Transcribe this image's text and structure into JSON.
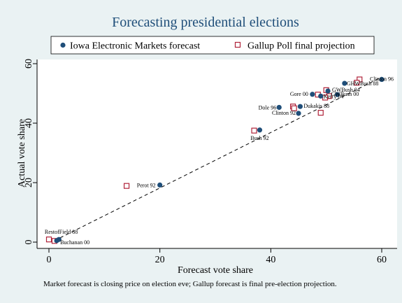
{
  "chart_data": {
    "type": "scatter",
    "title": "Forecasting presidential elections",
    "xlabel": "Forecast vote share",
    "ylabel": "Actual vote share",
    "xlim": [
      0,
      60
    ],
    "ylim": [
      0,
      60
    ],
    "xticks": [
      0,
      20,
      40,
      60
    ],
    "yticks": [
      0,
      20,
      40,
      60
    ],
    "legend_position": "top",
    "note": "Market forecast is closing price on election eve; Gallup forecast is final pre-election projection.",
    "fit_line": {
      "style": "dashed",
      "from": [
        1,
        0.5
      ],
      "to": [
        60,
        55.5
      ]
    },
    "series": [
      {
        "name": "Iowa Electronic Markets forecast",
        "marker": "filled-circle",
        "color": "#1f4e79",
        "points": [
          {
            "x": 60.0,
            "y": 54.7,
            "label": "Clinton 96"
          },
          {
            "x": 53.3,
            "y": 53.4,
            "label": "GHWBush 88"
          },
          {
            "x": 50.3,
            "y": 50.8,
            "label": "GWBush 04"
          },
          {
            "x": 52.0,
            "y": 49.6,
            "label": "GWBush 00"
          },
          {
            "x": 47.5,
            "y": 49.7,
            "label": "Gore 00"
          },
          {
            "x": 49.0,
            "y": 49.1,
            "label": "Kerry 04"
          },
          {
            "x": 45.3,
            "y": 45.6,
            "label": "Dukakis 88"
          },
          {
            "x": 41.5,
            "y": 45.3,
            "label": "Dole 96"
          },
          {
            "x": 45.0,
            "y": 43.3,
            "label": "Clinton 92"
          },
          {
            "x": 38.0,
            "y": 37.7,
            "label": "Bush 92"
          },
          {
            "x": 20.0,
            "y": 19.2,
            "label": "Perot 92"
          },
          {
            "x": 1.8,
            "y": 0.9,
            "label": "RestofField 88"
          },
          {
            "x": 1.4,
            "y": 0.5,
            "label": "Buchanan 00"
          }
        ]
      },
      {
        "name": "Gallup Poll final projection",
        "marker": "hollow-square",
        "color": "#b0233a",
        "points": [
          {
            "x": 56.0,
            "y": 54.7
          },
          {
            "x": 55.5,
            "y": 53.6
          },
          {
            "x": 50.0,
            "y": 51.1
          },
          {
            "x": 48.5,
            "y": 49.6
          },
          {
            "x": 50.5,
            "y": 49.1
          },
          {
            "x": 49.8,
            "y": 48.6
          },
          {
            "x": 44.0,
            "y": 45.6
          },
          {
            "x": 44.2,
            "y": 45.0
          },
          {
            "x": 49.0,
            "y": 43.5
          },
          {
            "x": 37.0,
            "y": 37.5
          },
          {
            "x": 14.0,
            "y": 18.9
          },
          {
            "x": 0.0,
            "y": 0.9
          },
          {
            "x": 1.0,
            "y": 0.4
          }
        ]
      }
    ]
  }
}
